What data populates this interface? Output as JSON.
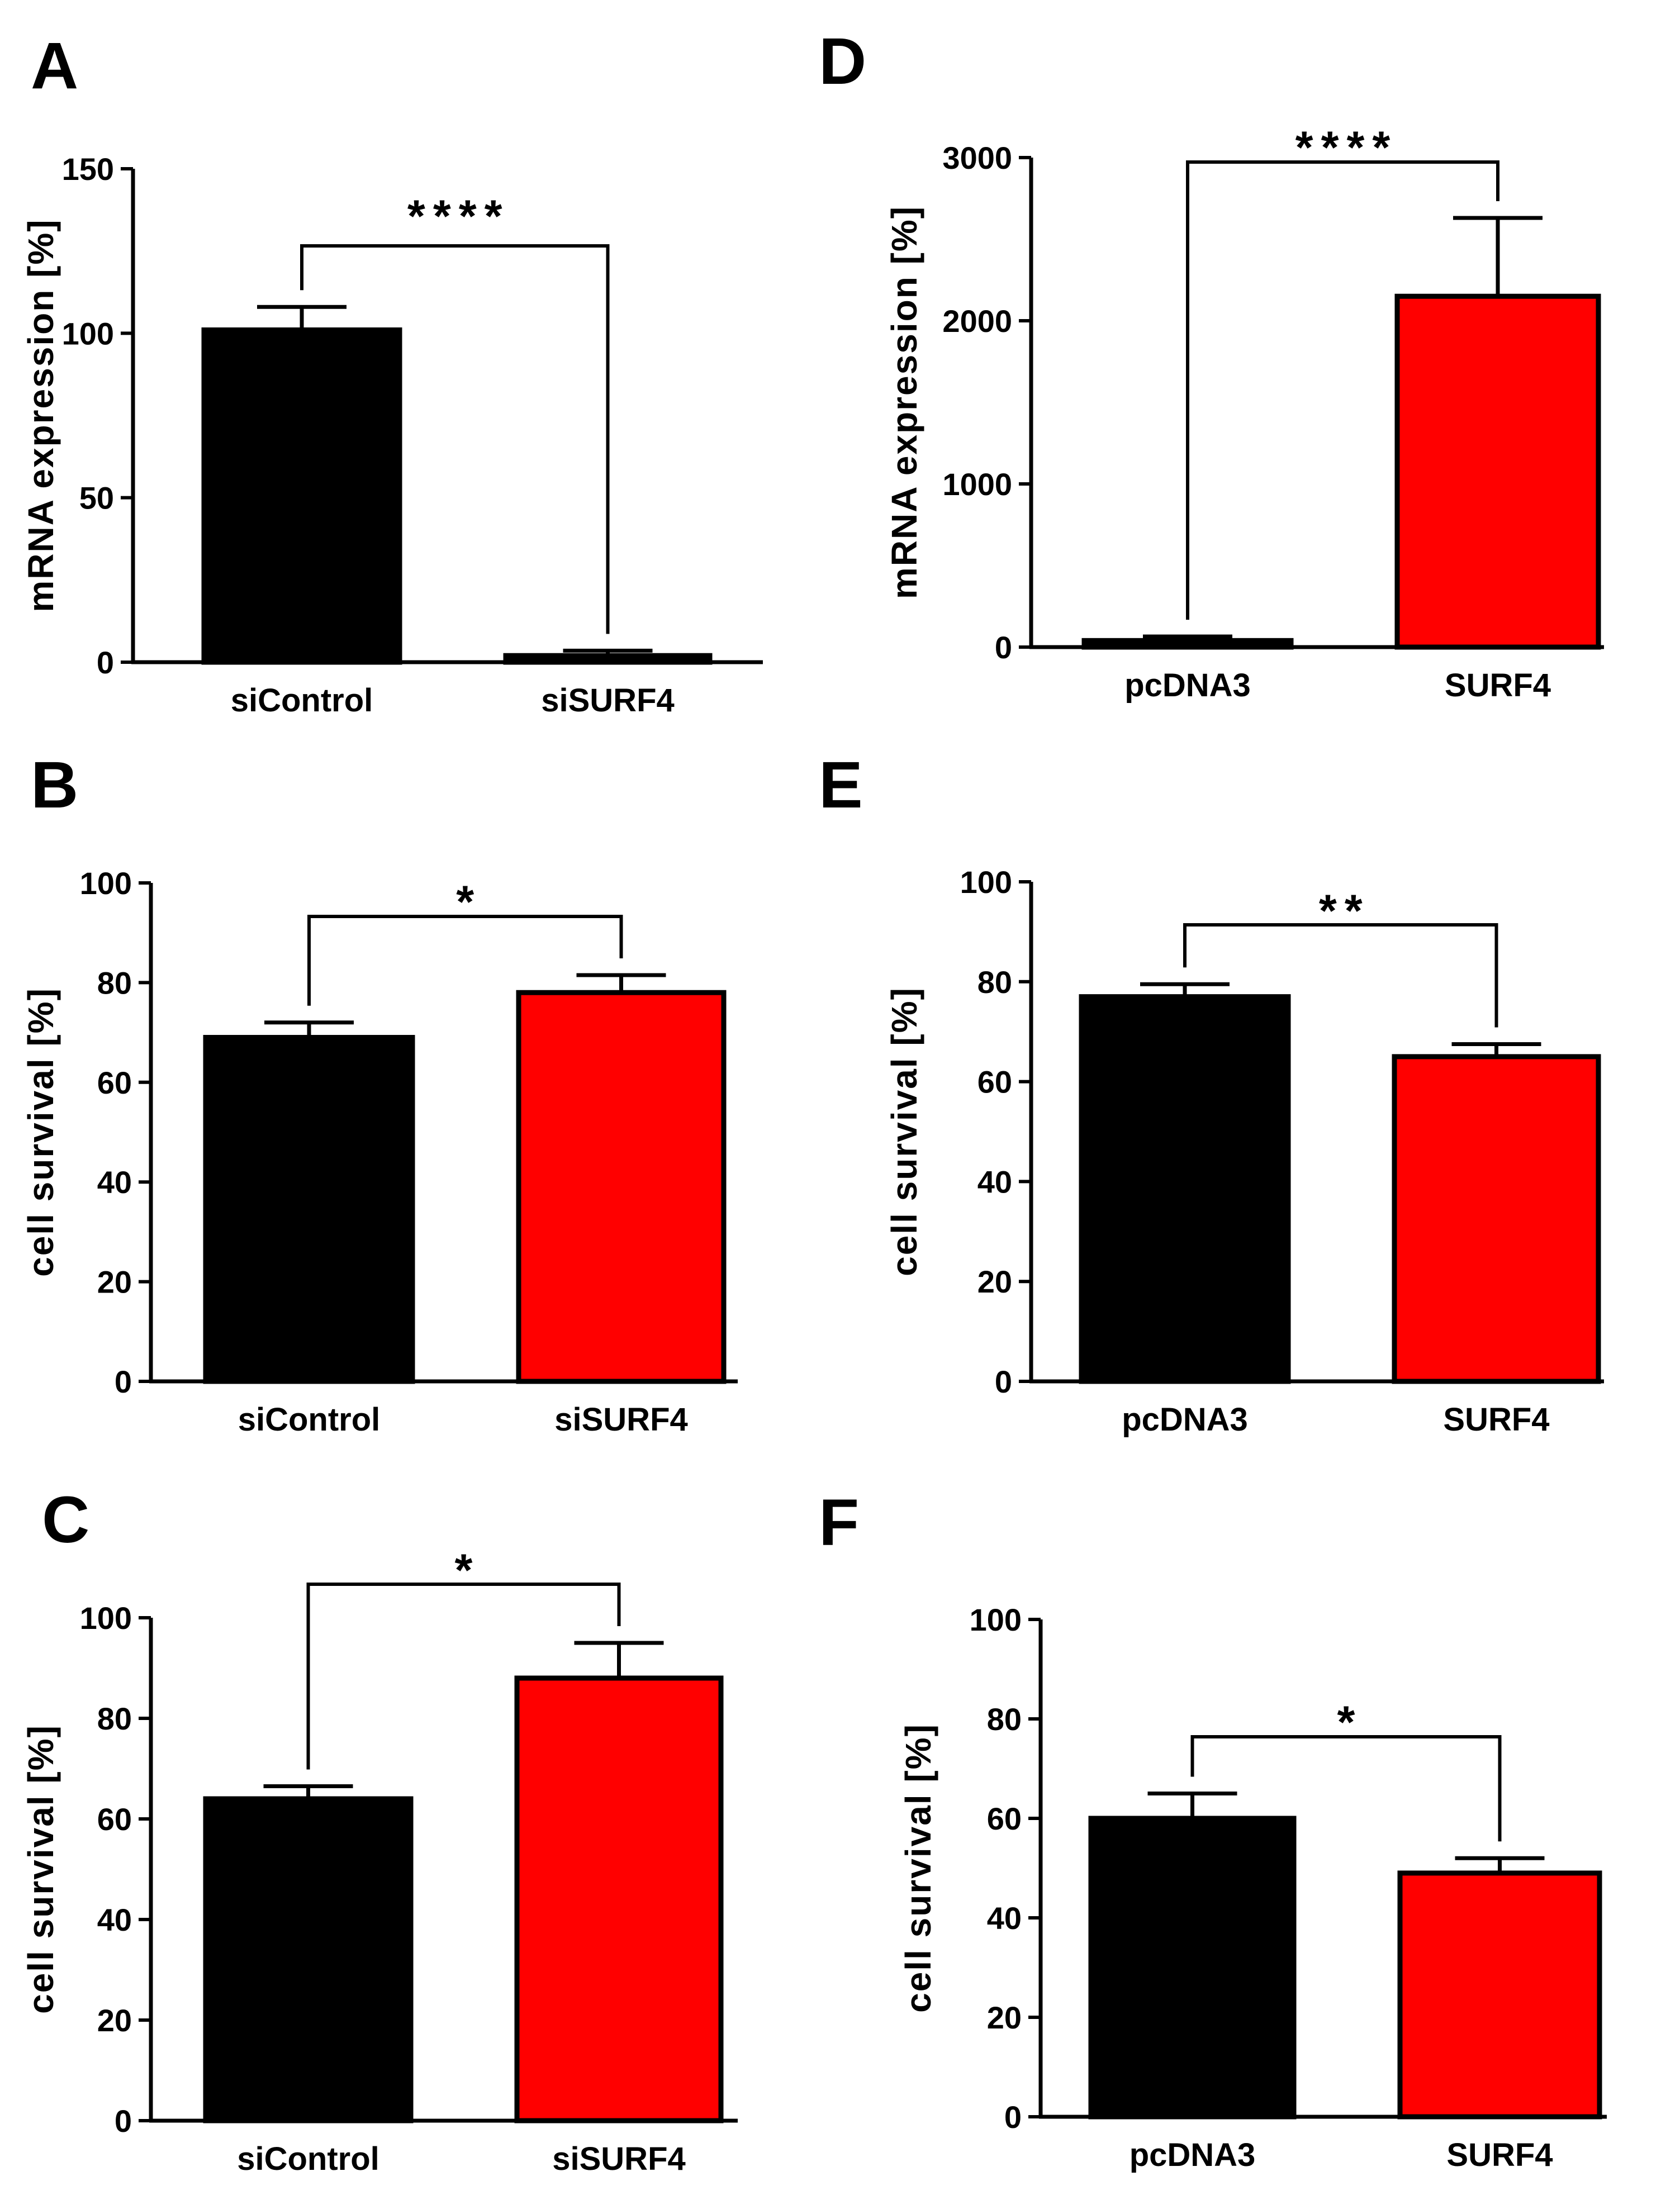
{
  "figure": {
    "panels": [
      "A",
      "B",
      "C",
      "D",
      "E",
      "F"
    ]
  },
  "chart_data": [
    {
      "panel": "A",
      "type": "bar",
      "categories": [
        "siControl",
        "siSURF4"
      ],
      "values": [
        101,
        2
      ],
      "errors": [
        7,
        1.5
      ],
      "colors": [
        "#000000",
        "#000000"
      ],
      "ylabel": "mRNA expression [%]",
      "ylim": [
        0,
        150
      ],
      "yticks": [
        0,
        50,
        100,
        150
      ],
      "significance": "****"
    },
    {
      "panel": "B",
      "type": "bar",
      "categories": [
        "siControl",
        "siSURF4"
      ],
      "values": [
        69,
        78
      ],
      "errors": [
        3,
        3.5
      ],
      "colors": [
        "#000000",
        "#ff0000"
      ],
      "ylabel": "cell survival [%]",
      "ylim": [
        0,
        100
      ],
      "yticks": [
        0,
        20,
        40,
        60,
        80,
        100
      ],
      "significance": "*"
    },
    {
      "panel": "C",
      "type": "bar",
      "categories": [
        "siControl",
        "siSURF4"
      ],
      "values": [
        64,
        88
      ],
      "errors": [
        2.5,
        7
      ],
      "colors": [
        "#000000",
        "#ff0000"
      ],
      "ylabel": "cell survival [%]",
      "ylim": [
        0,
        100
      ],
      "yticks": [
        0,
        20,
        40,
        60,
        80,
        100
      ],
      "significance": "*"
    },
    {
      "panel": "D",
      "type": "bar",
      "categories": [
        "pcDNA3",
        "SURF4"
      ],
      "values": [
        40,
        2150
      ],
      "errors": [
        25,
        480
      ],
      "colors": [
        "#000000",
        "#ff0000"
      ],
      "ylabel": "mRNA expression [%]",
      "ylim": [
        0,
        3000
      ],
      "yticks": [
        0,
        1000,
        2000,
        3000
      ],
      "significance": "****"
    },
    {
      "panel": "E",
      "type": "bar",
      "categories": [
        "pcDNA3",
        "SURF4"
      ],
      "values": [
        77,
        65
      ],
      "errors": [
        2.5,
        2.5
      ],
      "colors": [
        "#000000",
        "#ff0000"
      ],
      "ylabel": "cell survival [%]",
      "ylim": [
        0,
        100
      ],
      "yticks": [
        0,
        20,
        40,
        60,
        80,
        100
      ],
      "significance": "**"
    },
    {
      "panel": "F",
      "type": "bar",
      "categories": [
        "pcDNA3",
        "SURF4"
      ],
      "values": [
        60,
        49
      ],
      "errors": [
        5,
        3
      ],
      "colors": [
        "#000000",
        "#ff0000"
      ],
      "ylabel": "cell survival [%]",
      "ylim": [
        0,
        100
      ],
      "yticks": [
        0,
        20,
        40,
        60,
        80,
        100
      ],
      "significance": "*"
    }
  ]
}
